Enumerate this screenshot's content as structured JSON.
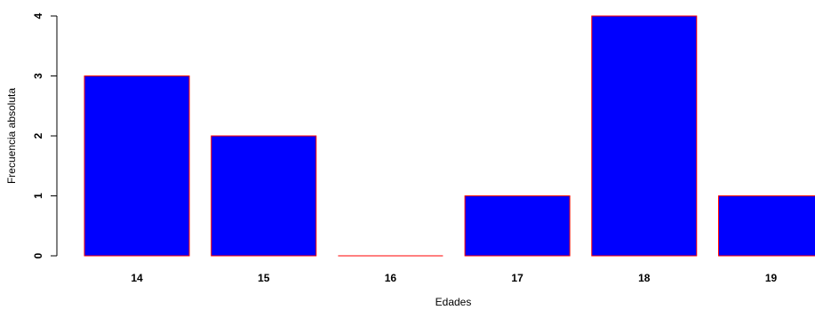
{
  "chart_data": {
    "type": "bar",
    "categories": [
      "14",
      "15",
      "16",
      "17",
      "18",
      "19"
    ],
    "values": [
      3,
      2,
      0,
      1,
      4,
      1
    ],
    "title": "",
    "xlabel": "Edades",
    "ylabel": "Frecuencia absoluta",
    "ylim": [
      0,
      4
    ],
    "yticks": [
      "0",
      "1",
      "2",
      "3",
      "4"
    ],
    "grid": false,
    "bar_fill": "#0000ff",
    "bar_border": "#ff0000"
  }
}
